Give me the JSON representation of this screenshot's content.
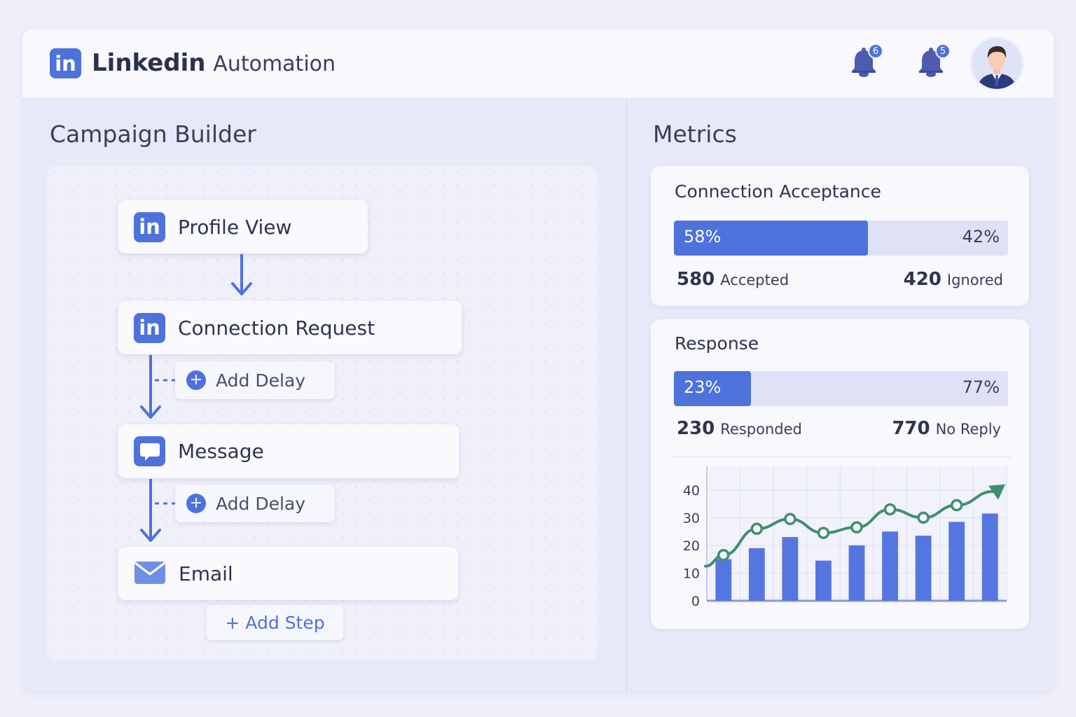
{
  "header": {
    "logo_text": "in",
    "brand_bold": "Linkedin",
    "brand_light": "Automation",
    "notifications": [
      {
        "icon": "bell-icon",
        "count": "6"
      },
      {
        "icon": "bell-icon",
        "count": "5"
      }
    ],
    "avatar_icon": "user-avatar-icon"
  },
  "builder": {
    "title": "Campaign Builder",
    "steps": [
      {
        "icon": "linkedin-icon",
        "icon_text": "in",
        "label": "Profile View"
      },
      {
        "icon": "linkedin-icon",
        "icon_text": "in",
        "label": "Connection Request"
      },
      {
        "icon": "message-icon",
        "icon_text": "",
        "label": "Message"
      },
      {
        "icon": "email-icon",
        "icon_text": "",
        "label": "Email"
      }
    ],
    "delays": [
      {
        "plus": "+",
        "label": "Add Delay"
      },
      {
        "plus": "+",
        "label": "Add Delay"
      }
    ],
    "add_step": "+ Add Step"
  },
  "metrics": {
    "title": "Metrics",
    "acceptance": {
      "title": "Connection Acceptance",
      "fill_fraction": 0.58,
      "left_pct": "58%",
      "right_pct": "42%",
      "accepted_num": "580",
      "accepted_label": "Accepted",
      "ignored_num": "420",
      "ignored_label": "Ignored"
    },
    "response": {
      "title": "Response",
      "fill_fraction": 0.23,
      "left_pct": "23%",
      "right_pct": "77%",
      "responded_num": "230",
      "responded_label": "Responded",
      "noreply_num": "770",
      "noreply_label": "No Reply"
    }
  },
  "colors": {
    "accent": "#4d72dc",
    "line": "#3f8f6e",
    "bar": "#5576e0"
  },
  "chart_data": {
    "type": "bar",
    "y_ticks": [
      "40",
      "30",
      "20",
      "10",
      "0"
    ],
    "ylim": [
      0,
      45
    ],
    "grid": true,
    "bar_values": [
      15,
      19,
      23,
      14.5,
      20,
      25,
      23.5,
      28.5,
      31.5
    ],
    "line_values": [
      16.5,
      26,
      29.5,
      24.5,
      26.5,
      33,
      30,
      34.5
    ],
    "line_trend": "upward-arrow"
  }
}
